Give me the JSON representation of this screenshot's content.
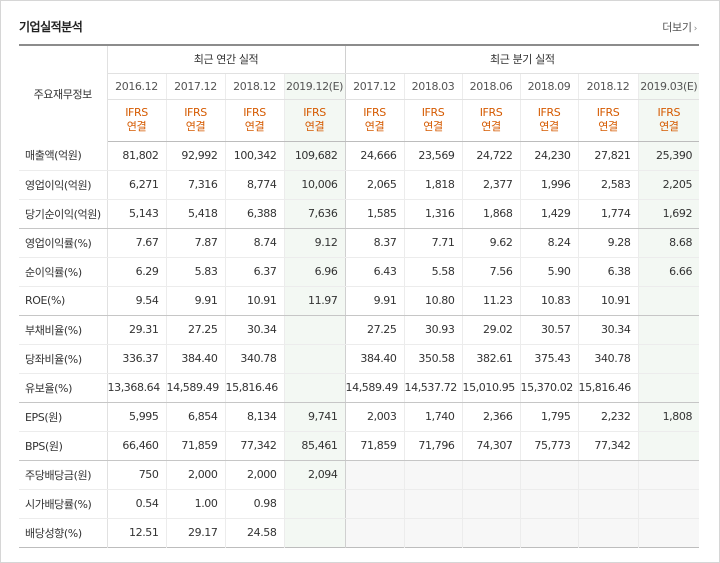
{
  "header": {
    "title": "기업실적분석",
    "more_label": "더보기",
    "more_arrow": "›"
  },
  "table": {
    "row_label_header": "주요재무정보",
    "groups": {
      "annual": "최근 연간 실적",
      "quarterly": "최근 분기 실적"
    },
    "annual_periods": [
      "2016.12",
      "2017.12",
      "2018.12",
      "2019.12(E)"
    ],
    "quarterly_periods": [
      "2017.12",
      "2018.03",
      "2018.06",
      "2018.09",
      "2018.12",
      "2019.03(E)"
    ],
    "ifrs_line1": "IFRS",
    "ifrs_line2": "연결",
    "rows": [
      {
        "label": "매출액(억원)",
        "values": [
          "81,802",
          "92,992",
          "100,342",
          "109,682",
          "24,666",
          "23,569",
          "24,722",
          "24,230",
          "27,821",
          "25,390"
        ]
      },
      {
        "label": "영업이익(억원)",
        "values": [
          "6,271",
          "7,316",
          "8,774",
          "10,006",
          "2,065",
          "1,818",
          "2,377",
          "1,996",
          "2,583",
          "2,205"
        ]
      },
      {
        "label": "당기순이익(억원)",
        "values": [
          "5,143",
          "5,418",
          "6,388",
          "7,636",
          "1,585",
          "1,316",
          "1,868",
          "1,429",
          "1,774",
          "1,692"
        ]
      },
      {
        "label": "영업이익률(%)",
        "values": [
          "7.67",
          "7.87",
          "8.74",
          "9.12",
          "8.37",
          "7.71",
          "9.62",
          "8.24",
          "9.28",
          "8.68"
        ]
      },
      {
        "label": "순이익률(%)",
        "values": [
          "6.29",
          "5.83",
          "6.37",
          "6.96",
          "6.43",
          "5.58",
          "7.56",
          "5.90",
          "6.38",
          "6.66"
        ]
      },
      {
        "label": "ROE(%)",
        "values": [
          "9.54",
          "9.91",
          "10.91",
          "11.97",
          "9.91",
          "10.80",
          "11.23",
          "10.83",
          "10.91",
          ""
        ]
      },
      {
        "label": "부채비율(%)",
        "values": [
          "29.31",
          "27.25",
          "30.34",
          "",
          "27.25",
          "30.93",
          "29.02",
          "30.57",
          "30.34",
          ""
        ]
      },
      {
        "label": "당좌비율(%)",
        "values": [
          "336.37",
          "384.40",
          "340.78",
          "",
          "384.40",
          "350.58",
          "382.61",
          "375.43",
          "340.78",
          ""
        ]
      },
      {
        "label": "유보율(%)",
        "values": [
          "13,368.64",
          "14,589.49",
          "15,816.46",
          "",
          "14,589.49",
          "14,537.72",
          "15,010.95",
          "15,370.02",
          "15,816.46",
          ""
        ]
      },
      {
        "label": "EPS(원)",
        "values": [
          "5,995",
          "6,854",
          "8,134",
          "9,741",
          "2,003",
          "1,740",
          "2,366",
          "1,795",
          "2,232",
          "1,808"
        ]
      },
      {
        "label": "BPS(원)",
        "values": [
          "66,460",
          "71,859",
          "77,342",
          "85,461",
          "71,859",
          "71,796",
          "74,307",
          "75,773",
          "77,342",
          ""
        ]
      },
      {
        "label": "주당배당금(원)",
        "values": [
          "750",
          "2,000",
          "2,000",
          "2,094",
          "",
          "",
          "",
          "",
          "",
          ""
        ]
      },
      {
        "label": "시가배당률(%)",
        "values": [
          "0.54",
          "1.00",
          "0.98",
          "",
          "",
          "",
          "",
          "",
          "",
          ""
        ]
      },
      {
        "label": "배당성향(%)",
        "values": [
          "12.51",
          "29.17",
          "24.58",
          "",
          "",
          "",
          "",
          "",
          "",
          ""
        ]
      }
    ]
  }
}
